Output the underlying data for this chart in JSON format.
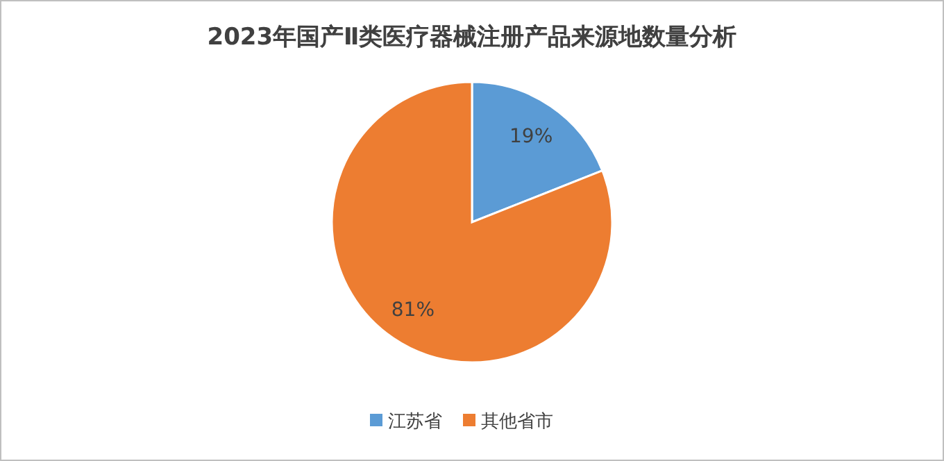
{
  "chart_data": {
    "type": "pie",
    "title": "2023年国产Ⅱ类医疗器械注册产品来源地数量分析",
    "categories": [
      "江苏省",
      "其他省市"
    ],
    "values": [
      19,
      81
    ],
    "colors": [
      "#5b9bd5",
      "#ed7d31"
    ],
    "value_labels": [
      "19%",
      "81%"
    ],
    "legend": "bottom"
  }
}
